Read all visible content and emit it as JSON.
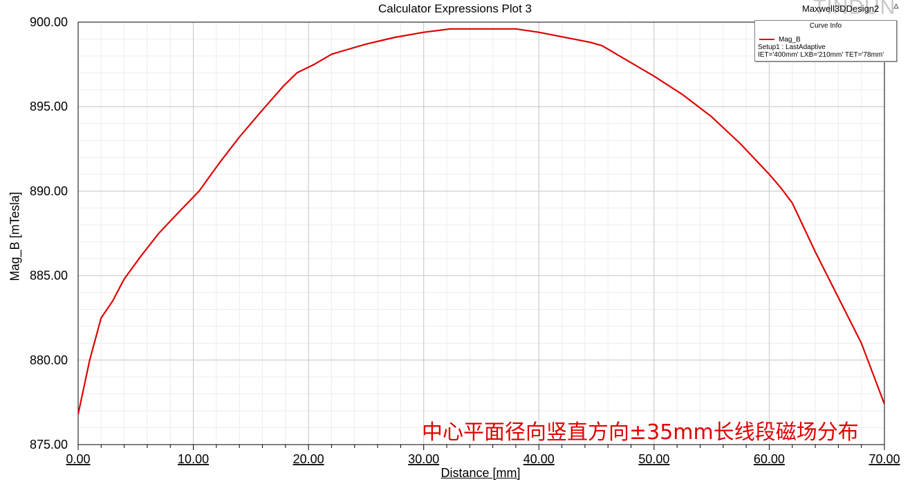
{
  "chart_data": {
    "type": "line",
    "title": "Calculator Expressions Plot 3",
    "xlabel": "Distance [mm]",
    "ylabel": "Mag_B [mTesla]",
    "xlim": [
      0,
      70
    ],
    "ylim": [
      875,
      900
    ],
    "x_ticks": [
      "0.00",
      "10.00",
      "20.00",
      "30.00",
      "40.00",
      "50.00",
      "60.00",
      "70.00"
    ],
    "y_ticks": [
      "875.00",
      "880.00",
      "885.00",
      "890.00",
      "895.00",
      "900.00"
    ],
    "grid": true,
    "legend_position": "top-right",
    "series": [
      {
        "name": "Mag_B",
        "color": "#e00000",
        "x": [
          0,
          1,
          2,
          3,
          4,
          5.5,
          7,
          8.8,
          10.5,
          12.3,
          14,
          16,
          17.8,
          19,
          20.5,
          22,
          23,
          25,
          27.5,
          30,
          32.3,
          35,
          38,
          40,
          43,
          44.5,
          45.5,
          47,
          50,
          52.5,
          55,
          57.5,
          60,
          61,
          62,
          64,
          66,
          68,
          70
        ],
        "y": [
          876.8,
          880.0,
          882.5,
          883.5,
          884.8,
          886.2,
          887.5,
          888.8,
          890.0,
          891.7,
          893.2,
          894.8,
          896.2,
          897.0,
          897.5,
          898.1,
          898.3,
          898.7,
          899.1,
          899.4,
          899.6,
          899.6,
          899.6,
          899.4,
          899.0,
          898.8,
          898.6,
          898.0,
          896.8,
          895.7,
          894.4,
          892.8,
          891.0,
          890.2,
          889.3,
          886.4,
          883.7,
          881.0,
          877.4
        ]
      }
    ]
  },
  "design_name": "Maxwell3DDesign2",
  "watermark": "TINDUN",
  "legend": {
    "header": "Curve Info",
    "series_label": "Mag_B",
    "setup": "Setup1 : LastAdaptive",
    "params": "IET='400mm' LXB='210mm' TET='78mm'"
  },
  "annotation": "中心平面径向竖直方向±35mm长线段磁场分布",
  "icons": {
    "pin": "pin-icon"
  }
}
